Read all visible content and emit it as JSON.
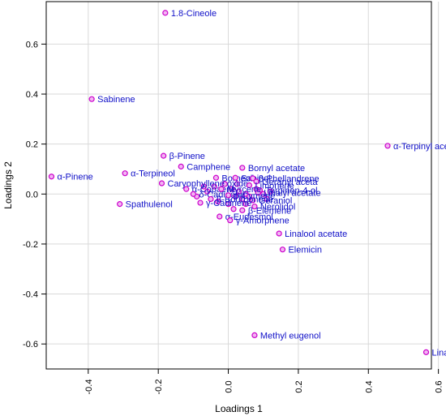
{
  "chart_data": {
    "type": "scatter",
    "title": "",
    "xlabel": "Loadings 1",
    "ylabel": "Loadings 2",
    "xlim": [
      -0.52,
      0.58
    ],
    "ylim": [
      -0.7,
      0.77
    ],
    "x_ticks": [
      "-0.4",
      "-0.2",
      "0.0",
      "0.2",
      "0.4",
      "0.6"
    ],
    "y_ticks": [
      "-0.6",
      "-0.4",
      "-0.2",
      "0.0",
      "0.2",
      "0.4",
      "0.6"
    ],
    "x_tick_values": [
      -0.4,
      -0.2,
      0.0,
      0.2,
      0.4,
      0.6
    ],
    "y_tick_values": [
      -0.6,
      -0.4,
      -0.2,
      0.0,
      0.2,
      0.4,
      0.6
    ],
    "grid": true,
    "point_color": "#cc00cc",
    "point_fill": "#f2b6f2",
    "label_color": "#1010c8",
    "grid_color": "#d9d9d9",
    "points": [
      {
        "label": "1.8-Cineole",
        "x": -0.18,
        "y": 0.725
      },
      {
        "label": "Sabinene",
        "x": -0.39,
        "y": 0.38
      },
      {
        "label": "α-Terpinyl aceta",
        "x": 0.455,
        "y": 0.193
      },
      {
        "label": "β-Pinene",
        "x": -0.185,
        "y": 0.153
      },
      {
        "label": "Camphene",
        "x": -0.135,
        "y": 0.11
      },
      {
        "label": "Bornyl acetate",
        "x": 0.04,
        "y": 0.105
      },
      {
        "label": "α-Pinene",
        "x": -0.505,
        "y": 0.07
      },
      {
        "label": "α-Terpineol",
        "x": -0.295,
        "y": 0.083
      },
      {
        "label": "Caryophyllene oxide",
        "x": -0.19,
        "y": 0.043
      },
      {
        "label": "Spathulenol",
        "x": -0.31,
        "y": -0.04
      },
      {
        "label": "Borneol",
        "x": -0.035,
        "y": 0.065
      },
      {
        "label": "Sabinol",
        "x": 0.02,
        "y": 0.065
      },
      {
        "label": "β-Phellandrene",
        "x": 0.07,
        "y": 0.063
      },
      {
        "label": "Geranyl aceta",
        "x": 0.08,
        "y": 0.05
      },
      {
        "label": "Limonene",
        "x": 0.06,
        "y": 0.035
      },
      {
        "label": "Terpinen-4-ol",
        "x": 0.09,
        "y": 0.015
      },
      {
        "label": "Linalyl acetate",
        "x": 0.085,
        "y": 0.005
      },
      {
        "label": "Geraniol",
        "x": 0.07,
        "y": -0.025
      },
      {
        "label": "Nerolidol",
        "x": 0.075,
        "y": -0.05
      },
      {
        "label": "α-Copaene",
        "x": -0.12,
        "y": 0.02
      },
      {
        "label": "δ-Cadinene",
        "x": -0.1,
        "y": 0.0
      },
      {
        "label": "β-Bourbonene",
        "x": -0.05,
        "y": -0.02
      },
      {
        "label": "γ-Cadinene",
        "x": -0.08,
        "y": -0.035
      },
      {
        "label": "Myrcene",
        "x": -0.02,
        "y": 0.02
      },
      {
        "label": "p-Cymene",
        "x": 0.0,
        "y": -0.005
      },
      {
        "label": "β-Elemene",
        "x": 0.04,
        "y": -0.065
      },
      {
        "label": "α-Eudesmol",
        "x": -0.025,
        "y": -0.09
      },
      {
        "label": "γ-Amorphene",
        "x": 0.005,
        "y": -0.105
      },
      {
        "label": "Linalool acetate",
        "x": 0.145,
        "y": -0.158
      },
      {
        "label": "Elemicin",
        "x": 0.155,
        "y": -0.222
      },
      {
        "label": "Methyl eugenol",
        "x": 0.075,
        "y": -0.565
      },
      {
        "label": "Linalool",
        "x": 0.565,
        "y": -0.633
      }
    ],
    "unlabeled_points": [
      {
        "x": -0.04,
        "y": 0.03
      },
      {
        "x": -0.01,
        "y": 0.04
      },
      {
        "x": 0.01,
        "y": 0.02
      },
      {
        "x": 0.02,
        "y": -0.01
      },
      {
        "x": 0.03,
        "y": 0.01
      },
      {
        "x": 0.04,
        "y": -0.02
      },
      {
        "x": 0.05,
        "y": 0.0
      },
      {
        "x": 0.06,
        "y": -0.01
      },
      {
        "x": 0.08,
        "y": 0.02
      },
      {
        "x": 0.1,
        "y": 0.0
      },
      {
        "x": -0.06,
        "y": 0.01
      },
      {
        "x": -0.03,
        "y": -0.03
      },
      {
        "x": 0.0,
        "y": -0.04
      },
      {
        "x": 0.015,
        "y": -0.06
      },
      {
        "x": 0.05,
        "y": -0.04
      },
      {
        "x": 0.11,
        "y": -0.02
      },
      {
        "x": 0.12,
        "y": 0.01
      },
      {
        "x": -0.07,
        "y": 0.03
      },
      {
        "x": -0.09,
        "y": -0.01
      },
      {
        "x": 0.025,
        "y": 0.04
      }
    ]
  }
}
